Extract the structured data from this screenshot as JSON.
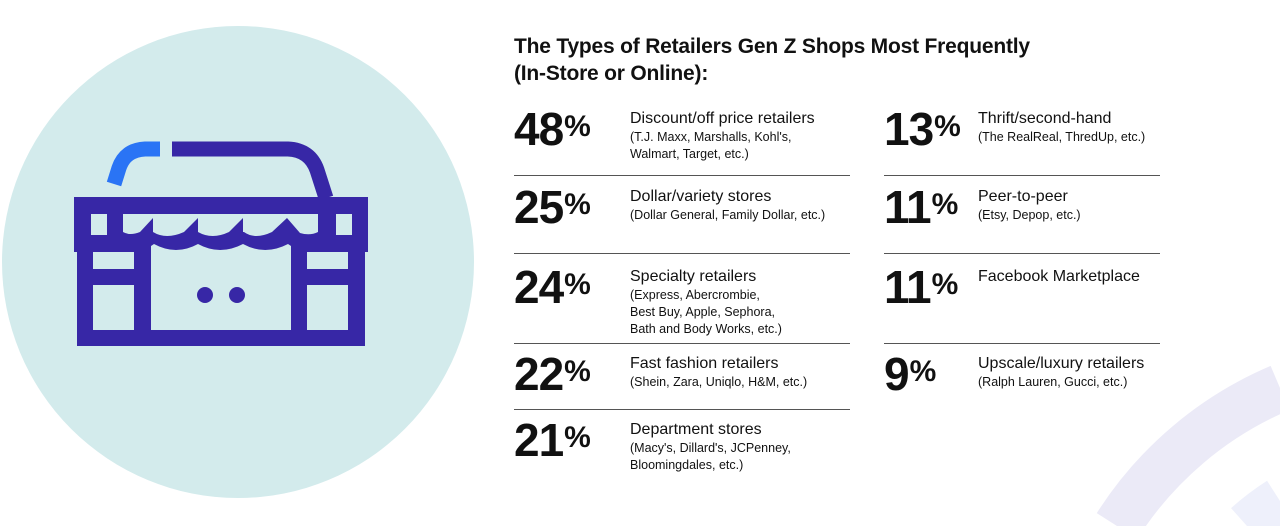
{
  "title": "The Types of Retailers Gen Z Shops Most Frequently (In-Store or Online):",
  "title_lines": [
    "The Types of Retailers Gen Z Shops Most Frequently",
    "(In-Store or Online):"
  ],
  "colors": {
    "circle": "#d3ebec",
    "icon_dark": "#3727a6",
    "icon_accent": "#2a74f5",
    "arc": "#ebeaf7"
  },
  "icon": "storefront-icon",
  "left_items": [
    {
      "value": "48",
      "unit": "%",
      "label": "Discount/off price retailers",
      "examples": "(T.J. Maxx, Marshalls, Kohl's,\nWalmart, Target, etc.)"
    },
    {
      "value": "25",
      "unit": "%",
      "label": "Dollar/variety stores",
      "examples": "(Dollar General, Family Dollar, etc.)"
    },
    {
      "value": "24",
      "unit": "%",
      "label": "Specialty retailers",
      "examples": "(Express, Abercrombie,\nBest Buy, Apple, Sephora,\nBath and Body Works, etc.)"
    },
    {
      "value": "22",
      "unit": "%",
      "label": "Fast fashion retailers",
      "examples": "(Shein, Zara, Uniqlo, H&M, etc.)"
    },
    {
      "value": "21",
      "unit": "%",
      "label": "Department stores",
      "examples": "(Macy's, Dillard's, JCPenney,\nBloomingdales, etc.)"
    }
  ],
  "right_items": [
    {
      "value": "13",
      "unit": "%",
      "label": "Thrift/second-hand",
      "examples": "(The RealReal, ThredUp, etc.)"
    },
    {
      "value": "11",
      "unit": "%",
      "label": "Peer-to-peer",
      "examples": "(Etsy, Depop, etc.)"
    },
    {
      "value": "11",
      "unit": "%",
      "label": "Facebook Marketplace",
      "examples": ""
    },
    {
      "value": "9",
      "unit": "%",
      "label": "Upscale/luxury retailers",
      "examples": "(Ralph Lauren, Gucci, etc.)"
    }
  ]
}
